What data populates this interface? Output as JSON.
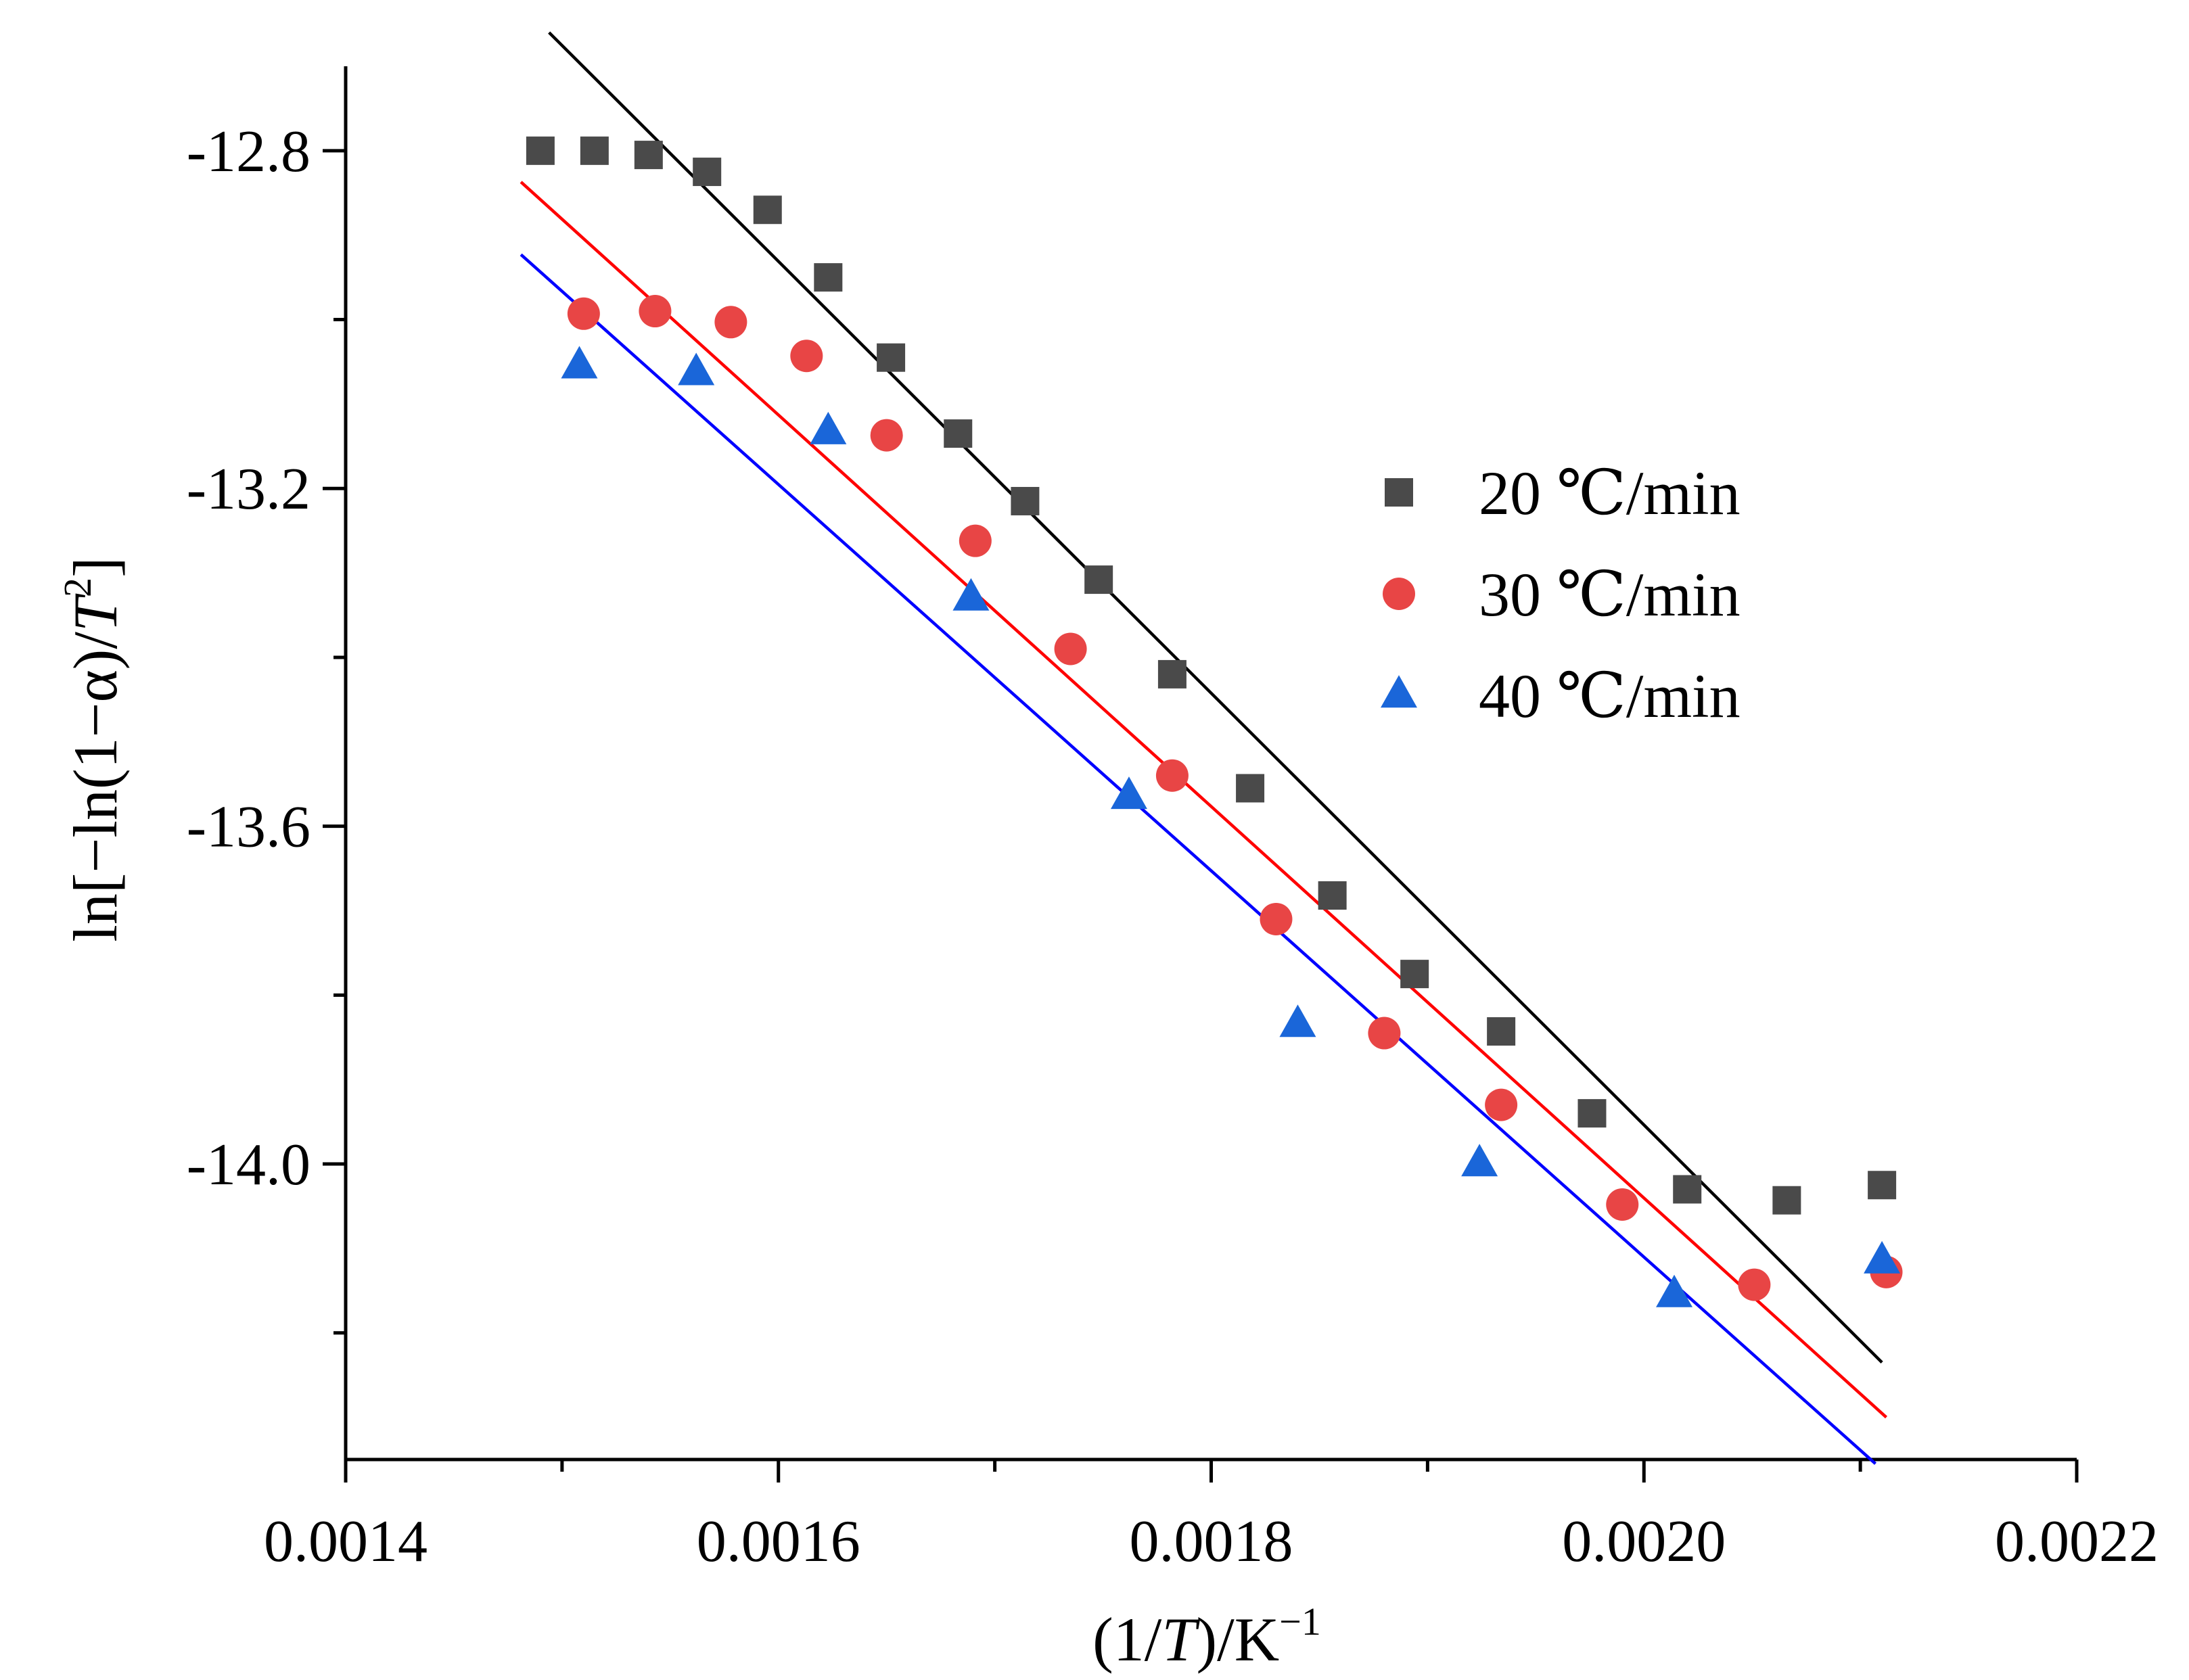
{
  "chart_data": {
    "type": "scatter",
    "title": "",
    "xlabel": "(1/T)/K−1",
    "ylabel": "ln[−ln(1−α)/T2]",
    "xlim": [
      0.0014,
      0.0022
    ],
    "ylim": [
      -14.35,
      -12.7
    ],
    "x_ticks": [
      {
        "value": 0.0014,
        "label": "0.0014"
      },
      {
        "value": 0.0016,
        "label": "0.0016"
      },
      {
        "value": 0.0018,
        "label": "0.0018"
      },
      {
        "value": 0.002,
        "label": "0.0020"
      },
      {
        "value": 0.0022,
        "label": "0.0022"
      }
    ],
    "x_minor_ticks": [
      0.0015,
      0.0017,
      0.0019,
      0.0021
    ],
    "y_ticks": [
      {
        "value": -12.8,
        "label": "-12.8"
      },
      {
        "value": -13.2,
        "label": "-13.2"
      },
      {
        "value": -13.6,
        "label": "-13.6"
      },
      {
        "value": -14.0,
        "label": "-14.0"
      }
    ],
    "y_minor_ticks": [
      -13.0,
      -13.4,
      -13.8,
      -14.2
    ],
    "grid": false,
    "legend_position": "upper-right",
    "series": [
      {
        "name": "20 ℃/min",
        "marker": "square",
        "color": "#4a4a4a",
        "x": [
          0.00149,
          0.001515,
          0.00154,
          0.001567,
          0.001595,
          0.001623,
          0.001652,
          0.001683,
          0.001714,
          0.001748,
          0.001782,
          0.001818,
          0.001856,
          0.001894,
          0.001934,
          0.001976,
          0.00202,
          0.002066,
          0.00211
        ],
        "y": [
          -12.8,
          -12.8,
          -12.805,
          -12.825,
          -12.87,
          -12.95,
          -13.045,
          -13.135,
          -13.215,
          -13.308,
          -13.42,
          -13.555,
          -13.682,
          -13.775,
          -13.843,
          -13.94,
          -14.03,
          -14.043,
          -14.025
        ],
        "fit": {
          "x": [
            0.001494,
            0.00211
          ],
          "y": [
            -12.66,
            -14.235
          ]
        }
      },
      {
        "name": "30 ℃/min",
        "marker": "circle",
        "color": "#e84545",
        "x": [
          0.00151,
          0.001543,
          0.001578,
          0.001613,
          0.00165,
          0.001691,
          0.001735,
          0.001782,
          0.00183,
          0.00188,
          0.001934,
          0.00199,
          0.002051,
          0.002112
        ],
        "y": [
          -12.993,
          -12.99,
          -13.003,
          -13.043,
          -13.137,
          -13.262,
          -13.39,
          -13.54,
          -13.71,
          -13.845,
          -13.93,
          -14.048,
          -14.143,
          -14.128
        ],
        "fit": {
          "x": [
            0.001481,
            0.002112
          ],
          "y": [
            -12.837,
            -14.3
          ]
        }
      },
      {
        "name": "40 ℃/min",
        "marker": "triangle",
        "color": "#1a66d9",
        "x": [
          0.001508,
          0.001562,
          0.001623,
          0.001689,
          0.001762,
          0.00184,
          0.001924,
          0.002014,
          0.00211
        ],
        "y": [
          -13.055,
          -13.063,
          -13.133,
          -13.33,
          -13.565,
          -13.835,
          -14.0,
          -14.155,
          -14.115
        ],
        "fit": {
          "x": [
            0.001481,
            0.002107
          ],
          "y": [
            -12.923,
            -14.355
          ]
        }
      }
    ]
  }
}
